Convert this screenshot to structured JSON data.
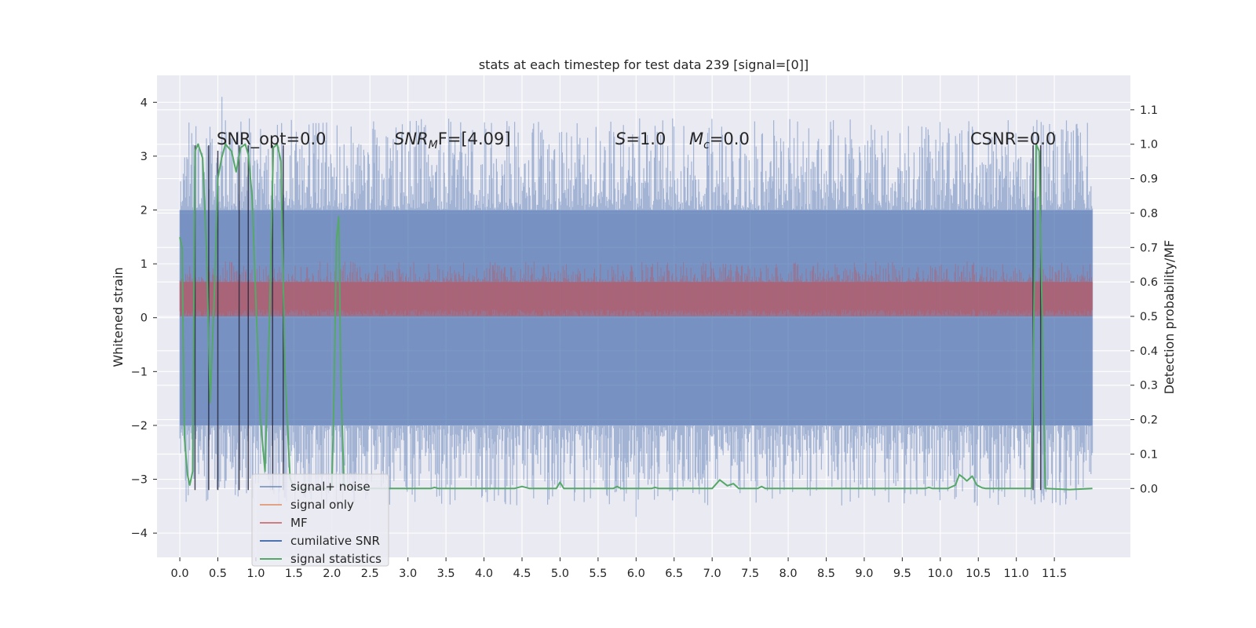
{
  "chart_data": {
    "type": "line",
    "title": "stats at each timestep for test data 239 [signal=[0]]",
    "xlabel": "",
    "ylabel": "Whitened strain",
    "y2label": "Detection probability/MF",
    "xlim": [
      -0.3,
      12.5
    ],
    "ylim": [
      -4.45,
      4.5
    ],
    "y2lim": [
      -0.2,
      1.2
    ],
    "x_ticks": [
      "0.0",
      "0.5",
      "1.0",
      "1.5",
      "2.0",
      "2.5",
      "3.0",
      "3.5",
      "4.0",
      "4.5",
      "5.0",
      "5.5",
      "6.0",
      "6.5",
      "7.0",
      "7.5",
      "8.0",
      "8.5",
      "9.0",
      "9.5",
      "10.0",
      "10.5",
      "11.0",
      "11.5"
    ],
    "y_ticks": [
      "4",
      "3",
      "2",
      "1",
      "0",
      "−1",
      "−2",
      "−3",
      "−4"
    ],
    "y2_ticks": [
      "1.1",
      "1.0",
      "0.9",
      "0.8",
      "0.7",
      "0.6",
      "0.5",
      "0.4",
      "0.3",
      "0.2",
      "0.1",
      "0.0"
    ],
    "grid": true,
    "legend_position": "lower-left",
    "annotations": {
      "snr_opt": "SNR_opt=0.0",
      "snr_mf_sym": "SNR",
      "snr_mf_sub": "M",
      "snr_mf_rest": "F=[4.09]",
      "s_sym": "S",
      "s_rest": "=1.0",
      "mc_sym": "M",
      "mc_sub": "c",
      "mc_rest": "=0.0",
      "csnr": "CSNR=0.0"
    },
    "series": [
      {
        "name": "signal+ noise",
        "color": "#4c72b0",
        "band": [
          -2.0,
          2.0
        ],
        "peak_max": 4.1,
        "peak_min": -3.7,
        "range_x": [
          0.0,
          12.0
        ]
      },
      {
        "name": "signal only",
        "color": "#dd8452"
      },
      {
        "name": "MF",
        "color": "#c44e52",
        "axis": "right",
        "band": [
          0.5,
          0.6
        ],
        "range_x": [
          0.0,
          12.0
        ]
      },
      {
        "name": "cumilative SNR",
        "color": "#4c72b0"
      },
      {
        "name": "signal statistics",
        "color": "#55a868",
        "axis": "right",
        "points": [
          [
            0.0,
            0.73
          ],
          [
            0.03,
            0.7
          ],
          [
            0.06,
            0.15
          ],
          [
            0.1,
            0.04
          ],
          [
            0.13,
            0.01
          ],
          [
            0.17,
            0.05
          ],
          [
            0.2,
            0.98
          ],
          [
            0.24,
            1.0
          ],
          [
            0.3,
            0.96
          ],
          [
            0.35,
            0.7
          ],
          [
            0.4,
            0.25
          ],
          [
            0.46,
            0.6
          ],
          [
            0.5,
            0.9
          ],
          [
            0.55,
            0.96
          ],
          [
            0.6,
            1.0
          ],
          [
            0.68,
            0.98
          ],
          [
            0.74,
            0.92
          ],
          [
            0.8,
            0.99
          ],
          [
            0.86,
            1.0
          ],
          [
            0.9,
            0.97
          ],
          [
            0.95,
            0.85
          ],
          [
            1.0,
            0.55
          ],
          [
            1.06,
            0.2
          ],
          [
            1.12,
            0.05
          ],
          [
            1.18,
            0.5
          ],
          [
            1.23,
            0.99
          ],
          [
            1.28,
            1.0
          ],
          [
            1.33,
            0.95
          ],
          [
            1.38,
            0.35
          ],
          [
            1.45,
            0.03
          ],
          [
            1.5,
            0.0
          ],
          [
            2.0,
            0.0
          ],
          [
            2.03,
            0.3
          ],
          [
            2.06,
            0.72
          ],
          [
            2.09,
            0.79
          ],
          [
            2.12,
            0.3
          ],
          [
            2.16,
            0.01
          ],
          [
            2.3,
            0.0
          ],
          [
            3.3,
            0.0
          ],
          [
            3.35,
            0.003
          ],
          [
            3.4,
            0.0
          ],
          [
            4.4,
            0.0
          ],
          [
            4.5,
            0.006
          ],
          [
            4.6,
            0.0
          ],
          [
            4.95,
            0.0
          ],
          [
            5.0,
            0.018
          ],
          [
            5.05,
            0.0
          ],
          [
            5.7,
            0.0
          ],
          [
            5.75,
            0.006
          ],
          [
            5.8,
            0.0
          ],
          [
            6.2,
            0.0
          ],
          [
            6.25,
            0.003
          ],
          [
            6.3,
            0.0
          ],
          [
            7.0,
            0.0
          ],
          [
            7.1,
            0.025
          ],
          [
            7.2,
            0.008
          ],
          [
            7.28,
            0.014
          ],
          [
            7.35,
            0.0
          ],
          [
            7.6,
            0.0
          ],
          [
            7.65,
            0.006
          ],
          [
            7.7,
            0.0
          ],
          [
            9.8,
            0.0
          ],
          [
            9.85,
            0.003
          ],
          [
            9.9,
            0.0
          ],
          [
            10.1,
            0.0
          ],
          [
            10.2,
            0.01
          ],
          [
            10.25,
            0.04
          ],
          [
            10.3,
            0.032
          ],
          [
            10.35,
            0.022
          ],
          [
            10.42,
            0.036
          ],
          [
            10.48,
            0.01
          ],
          [
            10.55,
            0.002
          ],
          [
            10.6,
            0.0
          ],
          [
            11.2,
            0.0
          ],
          [
            11.23,
            0.5
          ],
          [
            11.26,
            1.0
          ],
          [
            11.3,
            0.98
          ],
          [
            11.34,
            0.5
          ],
          [
            11.38,
            0.0
          ],
          [
            11.7,
            -0.003
          ],
          [
            12.0,
            0.0
          ]
        ]
      }
    ]
  }
}
